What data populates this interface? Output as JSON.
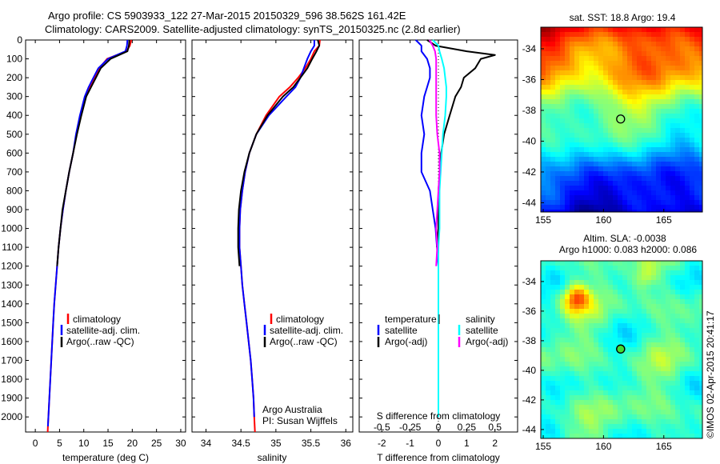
{
  "header": {
    "line1": "Argo profile: CS 5903933_122 27-Mar-2015 20150329_596 38.562S 161.42E",
    "line2": "Climatology: CARS2009. Satellite-adjusted climatology: synTS_20150325.nc (2.8d earlier)"
  },
  "colors": {
    "climatology": "#ff0000",
    "satellite": "#0000ff",
    "argo": "#000000",
    "s_satellite": "#00ffff",
    "s_argo": "#ff00ff"
  },
  "chart_data": [
    {
      "type": "line",
      "panel": "temperature",
      "xlabel": "temperature (deg C)",
      "xlim": [
        -2,
        31
      ],
      "xticks": [
        0,
        5,
        10,
        15,
        20,
        25,
        30
      ],
      "ylim": [
        2080,
        0
      ],
      "yticks": [
        0,
        100,
        200,
        300,
        400,
        500,
        600,
        700,
        800,
        900,
        1000,
        1100,
        1200,
        1300,
        1400,
        1500,
        1600,
        1700,
        1800,
        1900,
        2000
      ],
      "legend": [
        "climatology",
        "satellite-adj. clim.",
        "Argo(..raw -QC)"
      ],
      "series": [
        {
          "key": "clim",
          "color": "#ff0000",
          "x": [
            19.8,
            19.5,
            18.8,
            14.8,
            13.2,
            12.3,
            11.3,
            10.3,
            9.3,
            8.5,
            7.8,
            7.0,
            6.3,
            5.7,
            5.2,
            4.8,
            4.5,
            4.2,
            3.9,
            3.7,
            3.5,
            3.3,
            3.1,
            2.9,
            2.7,
            2.6,
            2.55
          ],
          "y": [
            0,
            30,
            60,
            100,
            150,
            200,
            250,
            300,
            400,
            500,
            600,
            700,
            800,
            900,
            1000,
            1100,
            1200,
            1300,
            1400,
            1500,
            1600,
            1700,
            1800,
            1900,
            2000,
            2050,
            2080
          ]
        },
        {
          "key": "sat",
          "color": "#0000ff",
          "x": [
            19.0,
            18.9,
            18.6,
            15.0,
            13.0,
            12.0,
            11.0,
            10.2,
            9.2,
            8.4,
            7.8,
            7.0,
            6.3,
            5.7,
            5.2,
            4.8,
            4.5,
            4.2,
            3.9,
            3.7,
            3.5,
            3.3,
            3.1,
            2.9,
            2.7,
            2.6
          ],
          "y": [
            0,
            30,
            60,
            100,
            150,
            200,
            250,
            300,
            400,
            500,
            600,
            700,
            800,
            900,
            1000,
            1100,
            1200,
            1300,
            1400,
            1500,
            1600,
            1700,
            1800,
            1900,
            2000,
            2050
          ]
        },
        {
          "key": "argo",
          "color": "#000000",
          "x": [
            19.4,
            19.3,
            19.0,
            15.5,
            13.5,
            12.5,
            11.5,
            10.5,
            9.5,
            8.6,
            7.8,
            7.0,
            6.3,
            5.6,
            5.2,
            4.8,
            4.5
          ],
          "y": [
            0,
            30,
            60,
            100,
            150,
            200,
            250,
            300,
            400,
            500,
            600,
            700,
            800,
            900,
            1000,
            1100,
            1200
          ]
        }
      ]
    },
    {
      "type": "line",
      "panel": "salinity",
      "xlabel": "salinity",
      "xlim": [
        33.8,
        36.1
      ],
      "xticks": [
        34,
        34.5,
        35,
        35.5,
        36
      ],
      "xticklabels": [
        "34",
        "34.5",
        "35",
        "35.5",
        "36"
      ],
      "ylim": [
        2080,
        0
      ],
      "legend": [
        "climatology",
        "satellite-adj. clim.",
        "Argo(..raw -QC)"
      ],
      "note": [
        "Argo Australia",
        "PI: Susan Wijffels"
      ],
      "series": [
        {
          "key": "clim",
          "color": "#ff0000",
          "x": [
            35.63,
            35.62,
            35.55,
            35.5,
            35.42,
            35.32,
            35.2,
            35.05,
            34.86,
            34.72,
            34.62,
            34.56,
            34.52,
            34.49,
            34.48,
            34.48,
            34.5,
            34.52,
            34.55,
            34.58,
            34.61,
            34.64,
            34.66,
            34.68,
            34.69,
            34.7
          ],
          "y": [
            0,
            30,
            60,
            100,
            150,
            200,
            250,
            300,
            400,
            500,
            600,
            700,
            800,
            900,
            1000,
            1100,
            1200,
            1300,
            1400,
            1500,
            1600,
            1700,
            1800,
            1900,
            2000,
            2080
          ]
        },
        {
          "key": "sat",
          "color": "#0000ff",
          "x": [
            35.55,
            35.55,
            35.5,
            35.45,
            35.4,
            35.35,
            35.28,
            35.15,
            34.9,
            34.72,
            34.62,
            34.56,
            34.52,
            34.49,
            34.48,
            34.48,
            34.5,
            34.52,
            34.55,
            34.58,
            34.61,
            34.64,
            34.66,
            34.68,
            34.69
          ],
          "y": [
            0,
            30,
            60,
            100,
            150,
            200,
            250,
            300,
            400,
            500,
            600,
            700,
            800,
            900,
            1000,
            1100,
            1200,
            1300,
            1400,
            1500,
            1600,
            1700,
            1800,
            1900,
            2000
          ]
        },
        {
          "key": "argo",
          "color": "#000000",
          "x": [
            35.6,
            35.62,
            35.58,
            35.52,
            35.45,
            35.35,
            35.25,
            35.1,
            34.88,
            34.72,
            34.62,
            34.55,
            34.5,
            34.47,
            34.46,
            34.46,
            34.48
          ],
          "y": [
            0,
            30,
            60,
            100,
            150,
            200,
            250,
            300,
            400,
            500,
            600,
            700,
            800,
            900,
            1000,
            1100,
            1200
          ]
        }
      ]
    },
    {
      "type": "line",
      "panel": "difference",
      "xlabel": "T difference from climatology",
      "xlim": [
        -2.8,
        2.8
      ],
      "xticks": [
        -2,
        -1,
        0,
        1,
        2
      ],
      "top_label": "S difference from climatology",
      "s_ticks": [
        -0.5,
        -0.25,
        0,
        0.25,
        0.5
      ],
      "s_ticklabels": [
        "-0.5",
        "-0.25",
        "0",
        "0.25",
        "0.5"
      ],
      "ylim": [
        2080,
        0
      ],
      "legend_headers": [
        "temperature",
        "salinity"
      ],
      "legend_temperature": [
        "satellite",
        "Argo(-adj)"
      ],
      "legend_salinity": [
        "satellite",
        "Argo(-adj)"
      ],
      "series": [
        {
          "key": "t_sat",
          "color": "#0000ff",
          "x": [
            -0.8,
            -0.6,
            -0.6,
            -0.4,
            -0.3,
            -0.3,
            -0.4,
            -0.5,
            -0.6,
            -0.5,
            -0.6,
            -0.6,
            -0.3,
            -0.2,
            -0.1,
            -0.05,
            0,
            0,
            0,
            0,
            0,
            0,
            0,
            0,
            0
          ],
          "y": [
            0,
            30,
            60,
            100,
            150,
            200,
            250,
            300,
            400,
            500,
            600,
            700,
            800,
            900,
            1000,
            1100,
            1200,
            1300,
            1400,
            1500,
            1600,
            1700,
            1800,
            1900,
            2000
          ]
        },
        {
          "key": "t_argo",
          "color": "#000000",
          "x": [
            -0.4,
            -0.1,
            1.0,
            2.0,
            1.5,
            1.3,
            0.9,
            0.8,
            0.6,
            0.4,
            0.2,
            0.1,
            0.05,
            0.0,
            0.0,
            0.0,
            -0.05
          ],
          "y": [
            0,
            30,
            60,
            80,
            100,
            150,
            200,
            250,
            300,
            400,
            500,
            600,
            700,
            800,
            900,
            1000,
            1100
          ]
        },
        {
          "key": "s_sat",
          "color": "#00ffff",
          "x": [
            -0.05,
            0.0,
            0.01,
            0.03,
            0.05,
            0.06,
            0.07,
            0.07,
            0.06,
            0.04,
            0.03,
            0.02,
            0.01,
            0.01,
            0.01,
            0.0,
            0.0,
            0.0,
            0.0,
            0.0,
            0.0,
            0.0,
            0.0,
            0.0,
            0.0
          ],
          "y": [
            0,
            30,
            60,
            100,
            150,
            200,
            250,
            300,
            400,
            500,
            600,
            700,
            800,
            900,
            1000,
            1100,
            1200,
            1300,
            1400,
            1500,
            1600,
            1700,
            1800,
            1900,
            2000
          ]
        },
        {
          "key": "s_argo",
          "color": "#ff00ff",
          "x": [
            -0.08,
            -0.05,
            -0.03,
            -0.02,
            -0.02,
            -0.02,
            -0.02,
            -0.02,
            -0.02,
            -0.01,
            0.01,
            0.01,
            0.0,
            -0.01,
            -0.02,
            -0.01,
            -0.02
          ],
          "y": [
            0,
            30,
            60,
            100,
            150,
            200,
            250,
            300,
            400,
            500,
            600,
            700,
            800,
            900,
            1000,
            1100,
            1200
          ]
        }
      ]
    },
    {
      "type": "heatmap",
      "panel": "sst-map",
      "title": "sat. SST: 18.8 Argo: 19.4",
      "xlim": [
        154.8,
        168.2
      ],
      "ylim": [
        -44.6,
        -32.6
      ],
      "xticks": [
        155,
        160,
        165
      ],
      "yticks": [
        -34,
        -36,
        -38,
        -40,
        -42,
        -44
      ],
      "marker": [
        161.42,
        -38.562
      ]
    },
    {
      "type": "heatmap",
      "panel": "sla-map",
      "title_lines": [
        "Altim. SLA: -0.0038",
        "Argo h1000: 0.083 h2000: 0.086"
      ],
      "xlim": [
        154.8,
        168.2
      ],
      "ylim": [
        -44.6,
        -32.6
      ],
      "xticks": [
        155,
        160,
        165
      ],
      "yticks": [
        -34,
        -36,
        -38,
        -40,
        -42,
        -44
      ],
      "marker": [
        161.42,
        -38.562
      ]
    }
  ],
  "footer": {
    "stamp": "©IMOS 02-Apr-2015 20:41:17"
  }
}
